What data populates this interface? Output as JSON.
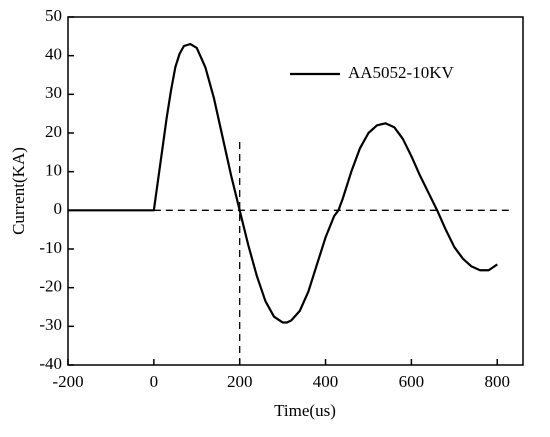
{
  "chart_data": {
    "type": "line",
    "x_label": "Time(us)",
    "y_label": "Current(KA)",
    "xlim": [
      -200,
      860
    ],
    "ylim": [
      -40,
      50
    ],
    "xticks": [
      -200,
      0,
      200,
      400,
      600,
      800
    ],
    "yticks": [
      -40,
      -30,
      -20,
      -10,
      0,
      10,
      20,
      30,
      40,
      50
    ],
    "legend": "upper right",
    "reference_lines": [
      {
        "axis": "y",
        "value": 0
      },
      {
        "axis": "x",
        "value": 200
      }
    ],
    "series": [
      {
        "name": "AA5052-10KV",
        "color": "#000000",
        "x": [
          -200,
          -100,
          0,
          10,
          20,
          30,
          40,
          50,
          60,
          70,
          85,
          100,
          120,
          140,
          160,
          180,
          200,
          220,
          240,
          260,
          280,
          300,
          310,
          320,
          340,
          360,
          380,
          400,
          420,
          430,
          440,
          460,
          480,
          500,
          520,
          540,
          560,
          580,
          600,
          620,
          640,
          660,
          680,
          700,
          720,
          740,
          760,
          780,
          800
        ],
        "values": [
          0,
          0,
          0,
          8,
          16,
          24,
          31,
          37,
          40.5,
          42.5,
          43,
          42,
          37,
          29,
          19,
          9,
          0,
          -9,
          -17,
          -23.5,
          -27.5,
          -29,
          -29,
          -28.5,
          -26,
          -21,
          -14,
          -7,
          -1.5,
          0,
          3,
          10,
          16,
          20,
          22,
          22.5,
          21.5,
          18.5,
          14,
          9,
          4.5,
          0,
          -5,
          -9.5,
          -12.5,
          -14.5,
          -15.5,
          -15.5,
          -14
        ]
      }
    ]
  }
}
